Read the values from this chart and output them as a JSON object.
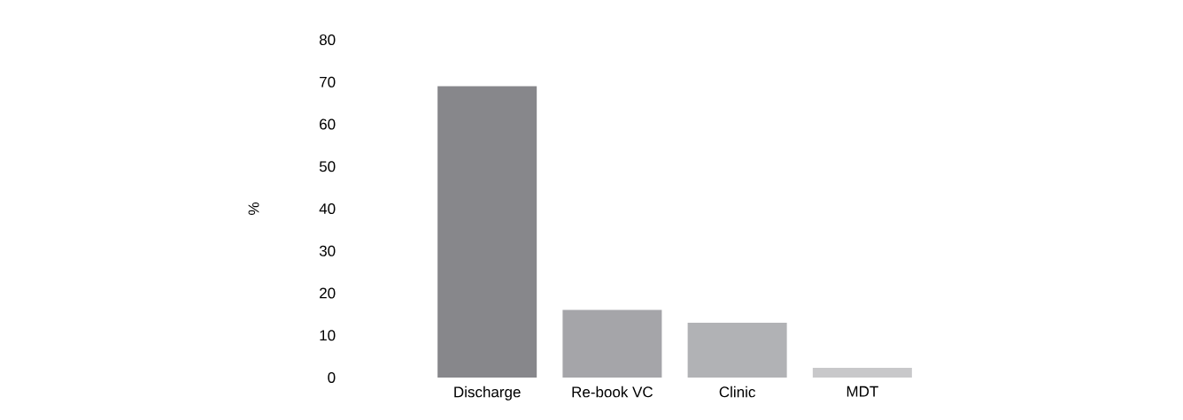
{
  "chart_data": {
    "type": "bar",
    "ylabel": "%",
    "categories": [
      "Discharge",
      "Re-book VC",
      "Clinic",
      "MDT"
    ],
    "values": [
      69,
      16,
      13,
      2.3
    ],
    "colors": [
      "#87878b",
      "#a5a5a9",
      "#b1b2b5",
      "#c8c8ca"
    ],
    "ylim": [
      0,
      80
    ],
    "yticks": [
      0,
      10,
      20,
      30,
      40,
      50,
      60,
      70,
      80
    ]
  }
}
